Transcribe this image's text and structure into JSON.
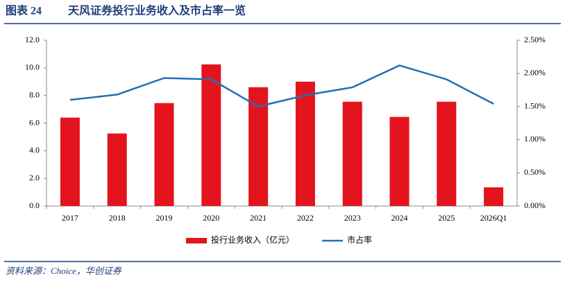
{
  "header": {
    "label": "图表 24",
    "title": "天风证券投行业务收入及市占率一览"
  },
  "chart_data": {
    "type": "bar",
    "categories": [
      "2017",
      "2018",
      "2019",
      "2020",
      "2021",
      "2022",
      "2023",
      "2024",
      "2025",
      "2026Q1"
    ],
    "series": [
      {
        "name": "投行业务收入（亿元）",
        "type": "bar",
        "color": "#e3141e",
        "values": [
          6.4,
          5.25,
          7.45,
          10.25,
          8.6,
          9.0,
          7.55,
          6.45,
          7.55,
          1.35
        ]
      },
      {
        "name": "市占率",
        "type": "line",
        "axis": "y2",
        "color": "#1f6fb5",
        "values": [
          1.6,
          1.68,
          1.93,
          1.91,
          1.5,
          1.67,
          1.79,
          2.12,
          1.91,
          1.54
        ]
      }
    ],
    "ylim": [
      0,
      12
    ],
    "yticks": [
      {
        "value": 0,
        "label": "0.0"
      },
      {
        "value": 2,
        "label": "2.0"
      },
      {
        "value": 4,
        "label": "4.0"
      },
      {
        "value": 6,
        "label": "6.0"
      },
      {
        "value": 8,
        "label": "8.0"
      },
      {
        "value": 10,
        "label": "10.0"
      },
      {
        "value": 12,
        "label": "12.0"
      }
    ],
    "y2lim": [
      0,
      2.5
    ],
    "y2ticks": [
      {
        "value": 0,
        "label": "0.00%"
      },
      {
        "value": 0.5,
        "label": "0.50%"
      },
      {
        "value": 1,
        "label": "1.00%"
      },
      {
        "value": 1.5,
        "label": "1.50%"
      },
      {
        "value": 2,
        "label": "2.00%"
      },
      {
        "value": 2.5,
        "label": "2.50%"
      }
    ],
    "grid": false
  },
  "footer": {
    "source": "资料来源：Choice，华创证券"
  }
}
